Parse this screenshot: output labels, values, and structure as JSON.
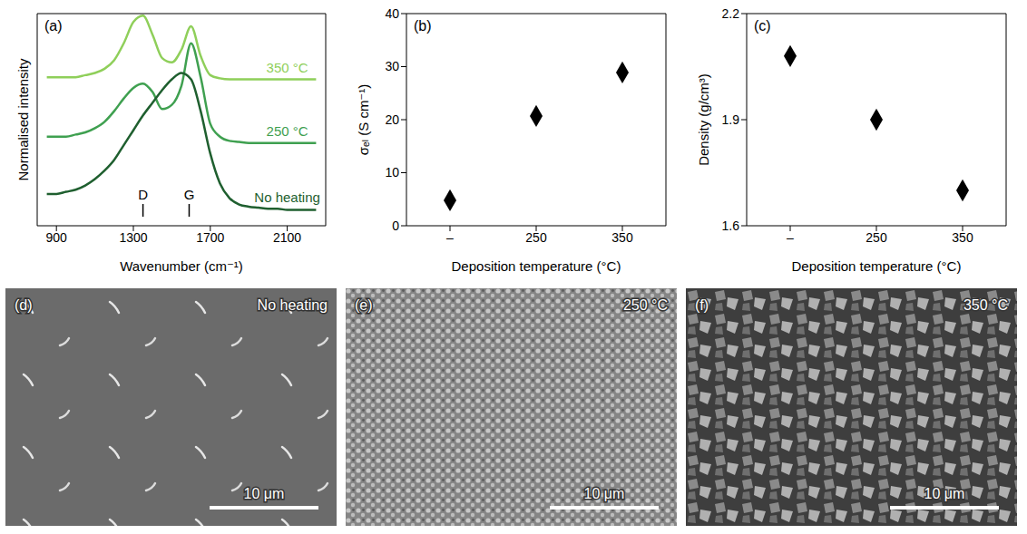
{
  "chart_data": [
    {
      "label": "(a)",
      "type": "line",
      "x_label": "Wavenumber (cm⁻¹)",
      "y_label": "Normalised intensity",
      "x": [
        850,
        900,
        950,
        1000,
        1050,
        1100,
        1150,
        1200,
        1250,
        1300,
        1350,
        1400,
        1450,
        1500,
        1550,
        1600,
        1650,
        1700,
        1750,
        1800,
        1850,
        1900,
        1950,
        2000,
        2050,
        2100,
        2150,
        2200,
        2250
      ],
      "series": [
        {
          "name": "350 °C",
          "color": "#8fcf5a",
          "values": [
            7.0,
            7.0,
            7.0,
            7.0,
            7.1,
            7.2,
            7.4,
            7.8,
            8.6,
            9.6,
            9.9,
            9.0,
            7.9,
            7.7,
            8.3,
            9.4,
            8.0,
            7.1,
            6.95,
            6.9,
            6.9,
            6.9,
            6.9,
            6.9,
            6.9,
            6.9,
            6.9,
            6.9,
            6.9
          ]
        },
        {
          "name": "250 °C",
          "color": "#3fa050",
          "values": [
            4.2,
            4.2,
            4.2,
            4.3,
            4.4,
            4.6,
            4.9,
            5.4,
            6.0,
            6.5,
            6.7,
            6.3,
            5.5,
            5.7,
            6.6,
            8.6,
            7.0,
            4.8,
            4.2,
            4.0,
            3.95,
            3.9,
            3.9,
            3.9,
            3.9,
            3.9,
            3.9,
            3.9,
            3.9
          ]
        },
        {
          "name": "No heating",
          "color": "#1f5f2f",
          "values": [
            1.5,
            1.5,
            1.6,
            1.7,
            1.9,
            2.2,
            2.6,
            3.1,
            3.8,
            4.5,
            5.2,
            5.8,
            6.4,
            6.9,
            7.2,
            6.9,
            5.4,
            3.4,
            2.0,
            1.3,
            1.0,
            0.9,
            0.85,
            0.8,
            0.8,
            0.75,
            0.75,
            0.75,
            0.75
          ]
        }
      ],
      "xlim": [
        800,
        2300
      ],
      "xticks": [
        900,
        1300,
        1700,
        2100
      ],
      "ylim": [
        0,
        10
      ],
      "yticks": [],
      "tick_labels": "x",
      "annotations": [
        {
          "text": "D",
          "x": 1350
        },
        {
          "text": "G",
          "x": 1590
        }
      ]
    },
    {
      "label": "(b)",
      "type": "scatter",
      "x_label": "Deposition temperature (°C)",
      "y_label": "σₑₗ (S cm⁻¹)",
      "categories": [
        "–",
        "250",
        "350"
      ],
      "values": [
        4.8,
        20.7,
        28.9
      ],
      "color": "#000000",
      "marker": "diamond",
      "ylim": [
        0,
        40
      ],
      "yticks": [
        0,
        10,
        20,
        30,
        40
      ]
    },
    {
      "label": "(c)",
      "type": "scatter",
      "x_label": "Deposition temperature (°C)",
      "y_label": "Density (g/cm³)",
      "categories": [
        "–",
        "250",
        "350"
      ],
      "values": [
        2.08,
        1.9,
        1.7
      ],
      "color": "#000000",
      "marker": "diamond",
      "ylim": [
        1.6,
        2.2
      ],
      "yticks": [
        1.6,
        1.9,
        2.2
      ]
    }
  ],
  "images": [
    {
      "label": "(d)",
      "title": "No heating",
      "scale_bar": "10 μm"
    },
    {
      "label": "(e)",
      "title": "250 °C",
      "scale_bar": "10 μm"
    },
    {
      "label": "(f)",
      "title": "350 °C",
      "scale_bar": "10 μm"
    }
  ]
}
